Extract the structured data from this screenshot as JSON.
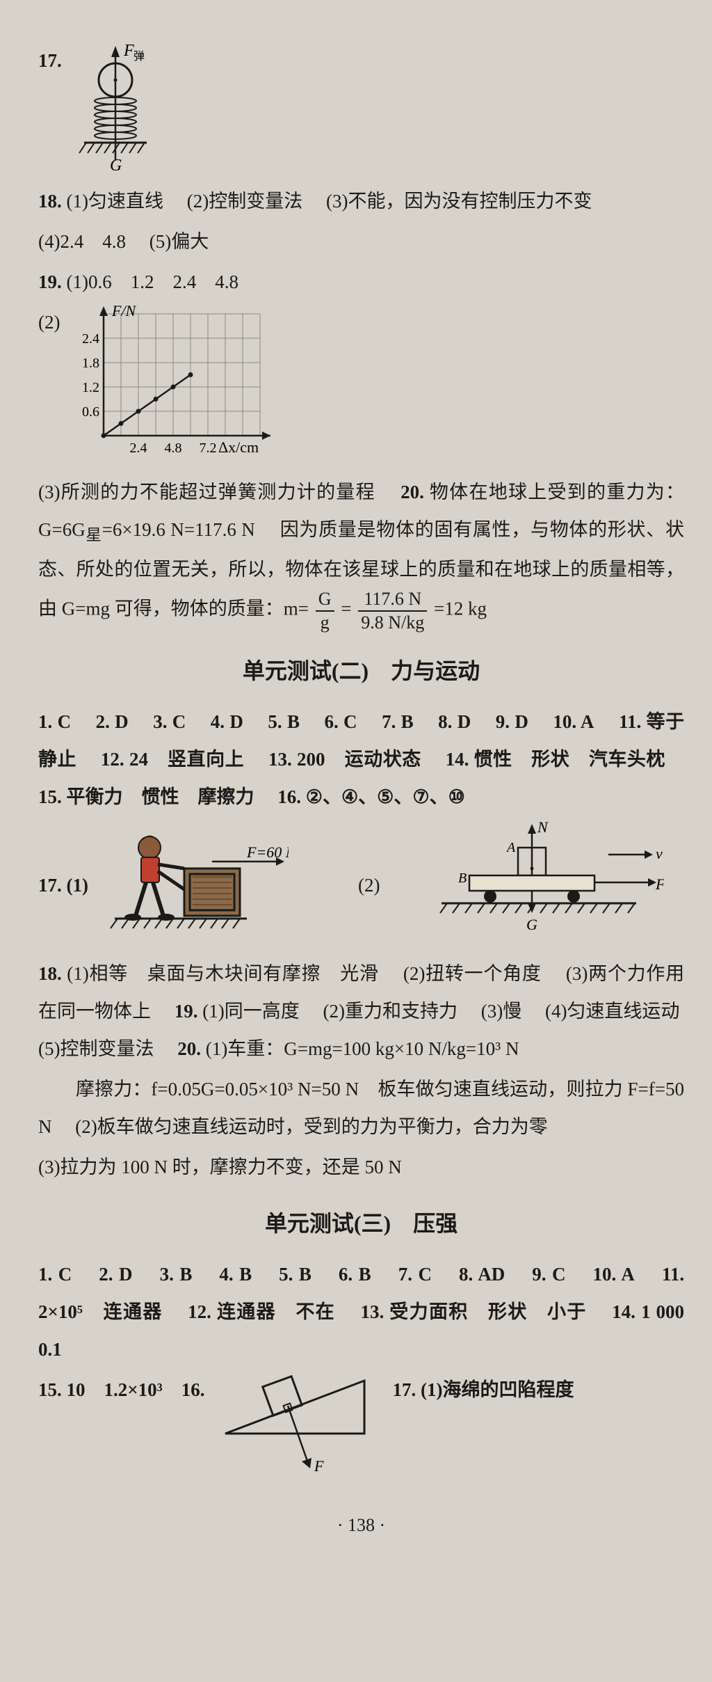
{
  "q17": {
    "num": "17.",
    "f_label": "F",
    "f_sub": "弹",
    "g_label": "G"
  },
  "q18a": {
    "prefix": "18.",
    "p1_label": "(1)",
    "p1": "匀速直线",
    "p2_label": "(2)",
    "p2": "控制变量法",
    "p3_label": "(3)",
    "p3": "不能，因为没有控制压力不变",
    "p4_label": "(4)",
    "p4a": "2.4",
    "p4b": "4.8",
    "p5_label": "(5)",
    "p5": "偏大"
  },
  "q19": {
    "prefix": "19.",
    "p1_label": "(1)",
    "v1": "0.6",
    "v2": "1.2",
    "v3": "2.4",
    "v4": "4.8",
    "p2_label": "(2)",
    "chart": {
      "y_label": "F/N",
      "x_label": "Δx/cm",
      "y_ticks": [
        "0.6",
        "1.2",
        "1.8",
        "2.4"
      ],
      "x_ticks": [
        "2.4",
        "4.8",
        "7.2"
      ],
      "points": [
        [
          0,
          0
        ],
        [
          1,
          0.3
        ],
        [
          2,
          0.6
        ],
        [
          3,
          0.9
        ],
        [
          4,
          1.2
        ],
        [
          5,
          1.5
        ]
      ]
    },
    "p3_label": "(3)",
    "p3": "所测的力不能超过弹簧测力计的量程"
  },
  "q20a": {
    "prefix": "20.",
    "t1": "物体在地球上受到的重力为：",
    "eq1": "G=6G",
    "eq1_sub": "星",
    "eq1b": "=6×19.6 N=117.6 N",
    "t2": "因为质量是物体的固有属性，与物体的形状、状态、所处的位置无关，所以，物体在该星球上的质量和在地球上的质量相等，",
    "t3a": "由 G=mg 可得，物体的质量：m=",
    "frac1_n": "G",
    "frac1_d": "g",
    "eq2": "=",
    "frac2_n": "117.6 N",
    "frac2_d": "9.8 N/kg",
    "eq3": "=12 kg"
  },
  "sec2_title": "单元测试(二)　力与运动",
  "sec2": {
    "a1": "1. C",
    "a2": "2. D",
    "a3": "3. C",
    "a4": "4. D",
    "a5": "5. B",
    "a6": "6. C",
    "a7": "7. B",
    "a8": "8. D",
    "a9": "9. D",
    "a10": "10. A",
    "a11": "11. 等于　静止",
    "a12": "12. 24　竖直向上",
    "a13": "13. 200　运动状态",
    "a14": "14. 惯性　形状　汽车头枕",
    "a15": "15. 平衡力　惯性　摩擦力",
    "a16": "16. ②、④、⑤、⑦、⑩",
    "a17_p1": "17. (1)",
    "a17_p2": "(2)",
    "f60": "F=60 N",
    "labels": {
      "N": "N",
      "A": "A",
      "B": "B",
      "v": "v",
      "F": "F",
      "G": "G"
    },
    "q18": {
      "prefix": "18.",
      "p1_label": "(1)",
      "p1a": "相等",
      "p1b": "桌面与木块间有摩擦",
      "p1c": "光滑",
      "p2_label": "(2)",
      "p2": "扭转一个角度",
      "p3_label": "(3)",
      "p3": "两个力作用在同一物体上"
    },
    "q19b": {
      "prefix": "19.",
      "p1_label": "(1)",
      "p1": "同一高度",
      "p2_label": "(2)",
      "p2": "重力和支持力",
      "p3_label": "(3)",
      "p3": "慢",
      "p4_label": "(4)",
      "p4": "匀速直线运动",
      "p5_label": "(5)",
      "p5": "控制变量法"
    },
    "q20b": {
      "prefix": "20.",
      "p1_label": "(1)",
      "t1": "车重：G=mg=100 kg×10 N/kg=10³ N",
      "t2": "摩擦力：f=0.05G=0.05×10³ N=50 N　板车做匀速直线运动，则拉力 F=f=50 N",
      "p2_label": "(2)",
      "p2": "板车做匀速直线运动时，受到的力为平衡力，合力为零",
      "p3_label": "(3)",
      "p3": "拉力为 100 N 时，摩擦力不变，还是 50 N"
    }
  },
  "sec3_title": "单元测试(三)　压强",
  "sec3": {
    "a1": "1. C",
    "a2": "2. D",
    "a3": "3. B",
    "a4": "4. B",
    "a5": "5. B",
    "a6": "6. B",
    "a7": "7. C",
    "a8": "8. AD",
    "a9": "9. C",
    "a10": "10. A",
    "a11": "11. 2×10⁵　连通器",
    "a12": "12. 连通器　不在",
    "a13": "13. 受力面积　形状　小于",
    "a14": "14. 1 000　0.1",
    "a15": "15. 10　1.2×10³",
    "a16": "16.",
    "a17": "17. (1)海绵的凹陷程度",
    "F": "F"
  },
  "page_num": "· 138 ·"
}
